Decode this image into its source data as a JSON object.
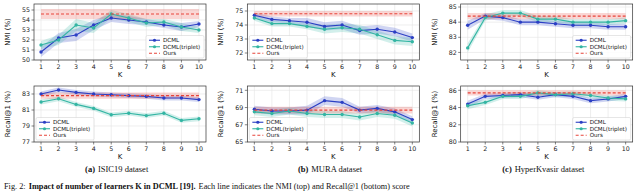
{
  "chart_data": [
    {
      "type": "line",
      "x_label": "K",
      "y_label": "NMI (%)",
      "x": [
        1,
        2,
        3,
        4,
        5,
        6,
        7,
        8,
        9,
        10
      ],
      "xlim": [
        0.6,
        10.4
      ],
      "xticks": [
        1,
        2,
        3,
        4,
        5,
        6,
        7,
        8,
        9,
        10
      ],
      "ylim": [
        50,
        55.6
      ],
      "yticks": [
        50,
        51,
        52,
        53,
        54,
        55
      ],
      "grid": true,
      "legend": "lower right",
      "series": [
        {
          "name": "DCML",
          "color": "#2b3fc4",
          "marker": "circle",
          "line_style": "solid",
          "values": [
            50.8,
            52.2,
            52.5,
            53.5,
            54.2,
            54.0,
            53.8,
            53.5,
            53.3,
            53.6
          ],
          "std": [
            0.5,
            0.5,
            0.6,
            0.5,
            0.4,
            0.4,
            0.3,
            0.3,
            0.4,
            0.3
          ]
        },
        {
          "name": "DCML(triplet)",
          "color": "#33b5a3",
          "marker": "circle",
          "line_style": "solid",
          "values": [
            51.5,
            52.0,
            53.5,
            53.2,
            54.6,
            54.2,
            53.7,
            53.8,
            53.3,
            53.0
          ],
          "std": [
            0.4,
            0.5,
            0.6,
            0.5,
            0.4,
            0.4,
            0.4,
            0.3,
            0.4,
            0.3
          ]
        },
        {
          "name": "Ours",
          "color": "#e8443a",
          "marker": "none",
          "line_style": "dashed",
          "values": [
            54.6,
            54.6,
            54.6,
            54.6,
            54.6,
            54.6,
            54.6,
            54.6,
            54.6,
            54.6
          ],
          "std": [
            0.5,
            0.5,
            0.5,
            0.5,
            0.5,
            0.5,
            0.5,
            0.5,
            0.5,
            0.5
          ]
        }
      ]
    },
    {
      "type": "line",
      "x_label": "K",
      "y_label": "Recall@1 (%)",
      "x": [
        1,
        2,
        3,
        4,
        5,
        6,
        7,
        8,
        9,
        10
      ],
      "xlim": [
        0.6,
        10.4
      ],
      "xticks": [
        1,
        2,
        3,
        4,
        5,
        6,
        7,
        8,
        9,
        10
      ],
      "ylim": [
        77,
        84
      ],
      "yticks": [
        77,
        79,
        81,
        83
      ],
      "grid": true,
      "legend": "lower left",
      "series": [
        {
          "name": "DCML",
          "color": "#2b3fc4",
          "marker": "circle",
          "line_style": "solid",
          "values": [
            83.0,
            83.5,
            83.2,
            83.0,
            82.9,
            82.8,
            82.7,
            82.5,
            82.5,
            82.3
          ],
          "std": [
            0.3,
            0.3,
            0.3,
            0.3,
            0.3,
            0.3,
            0.3,
            0.3,
            0.3,
            0.3
          ]
        },
        {
          "name": "DCML(triplet)",
          "color": "#33b5a3",
          "marker": "circle",
          "line_style": "solid",
          "values": [
            82.0,
            82.4,
            81.7,
            81.2,
            80.4,
            80.6,
            80.3,
            80.6,
            79.7,
            79.9
          ],
          "std": [
            0.3,
            0.3,
            0.3,
            0.3,
            0.3,
            0.3,
            0.3,
            0.3,
            0.3,
            0.3
          ]
        },
        {
          "name": "Ours",
          "color": "#e8443a",
          "marker": "none",
          "line_style": "dashed",
          "values": [
            82.8,
            82.8,
            82.8,
            82.8,
            82.8,
            82.8,
            82.8,
            82.8,
            82.8,
            82.8
          ],
          "std": [
            0.4,
            0.4,
            0.4,
            0.4,
            0.4,
            0.4,
            0.4,
            0.4,
            0.4,
            0.4
          ]
        }
      ]
    },
    {
      "type": "line",
      "x_label": "K",
      "y_label": "NMI (%)",
      "x": [
        1,
        2,
        3,
        4,
        5,
        6,
        7,
        8,
        9,
        10
      ],
      "xlim": [
        0.6,
        10.4
      ],
      "xticks": [
        1,
        2,
        3,
        4,
        5,
        6,
        7,
        8,
        9,
        10
      ],
      "ylim": [
        71.5,
        75.5
      ],
      "yticks": [
        72,
        73,
        74,
        75
      ],
      "grid": true,
      "legend": "lower left",
      "series": [
        {
          "name": "DCML",
          "color": "#2b3fc4",
          "marker": "circle",
          "line_style": "solid",
          "values": [
            74.7,
            74.4,
            74.3,
            74.2,
            73.9,
            74.0,
            73.6,
            73.7,
            73.5,
            73.1
          ],
          "std": [
            0.2,
            0.2,
            0.2,
            0.3,
            0.3,
            0.3,
            0.3,
            0.3,
            0.3,
            0.3
          ]
        },
        {
          "name": "DCML(triplet)",
          "color": "#33b5a3",
          "marker": "circle",
          "line_style": "solid",
          "values": [
            74.5,
            74.1,
            74.1,
            73.9,
            73.7,
            73.8,
            73.7,
            73.3,
            72.9,
            72.8
          ],
          "std": [
            0.2,
            0.2,
            0.2,
            0.2,
            0.3,
            0.3,
            0.3,
            0.3,
            0.3,
            0.3
          ]
        },
        {
          "name": "Ours",
          "color": "#e8443a",
          "marker": "none",
          "line_style": "dashed",
          "values": [
            74.8,
            74.8,
            74.8,
            74.8,
            74.8,
            74.8,
            74.8,
            74.8,
            74.8,
            74.8
          ],
          "std": [
            0.2,
            0.2,
            0.2,
            0.2,
            0.2,
            0.2,
            0.2,
            0.2,
            0.2,
            0.2
          ]
        }
      ]
    },
    {
      "type": "line",
      "x_label": "K",
      "y_label": "Recall@1 (%)",
      "x": [
        1,
        2,
        3,
        4,
        5,
        6,
        7,
        8,
        9,
        10
      ],
      "xlim": [
        0.6,
        10.4
      ],
      "xticks": [
        1,
        2,
        3,
        4,
        5,
        6,
        7,
        8,
        9,
        10
      ],
      "ylim": [
        65,
        71.5
      ],
      "yticks": [
        65,
        67,
        69,
        71
      ],
      "grid": true,
      "legend": "lower left",
      "series": [
        {
          "name": "DCML",
          "color": "#2b3fc4",
          "marker": "circle",
          "line_style": "solid",
          "values": [
            68.8,
            68.6,
            68.6,
            68.7,
            69.8,
            69.6,
            68.7,
            68.9,
            68.5,
            67.6
          ],
          "std": [
            0.4,
            0.4,
            0.4,
            0.5,
            0.5,
            0.5,
            0.4,
            0.4,
            0.4,
            0.4
          ]
        },
        {
          "name": "DCML(triplet)",
          "color": "#33b5a3",
          "marker": "circle",
          "line_style": "solid",
          "values": [
            68.5,
            68.3,
            68.6,
            68.3,
            68.2,
            68.2,
            67.9,
            68.3,
            68.1,
            67.2
          ],
          "std": [
            0.4,
            0.4,
            0.4,
            0.4,
            0.4,
            0.4,
            0.4,
            0.4,
            0.4,
            0.4
          ]
        },
        {
          "name": "Ours",
          "color": "#e8443a",
          "marker": "none",
          "line_style": "dashed",
          "values": [
            68.7,
            68.7,
            68.7,
            68.7,
            68.7,
            68.7,
            68.7,
            68.7,
            68.7,
            68.7
          ],
          "std": [
            0.4,
            0.4,
            0.4,
            0.4,
            0.4,
            0.4,
            0.4,
            0.4,
            0.4,
            0.4
          ]
        }
      ]
    },
    {
      "type": "line",
      "x_label": "K",
      "y_label": "NMI (%)",
      "x": [
        1,
        2,
        3,
        4,
        5,
        6,
        7,
        8,
        9,
        10
      ],
      "xlim": [
        0.6,
        10.4
      ],
      "xticks": [
        1,
        2,
        3,
        4,
        5,
        6,
        7,
        8,
        9,
        10
      ],
      "ylim": [
        81.5,
        85.2
      ],
      "yticks": [
        82,
        83,
        84,
        85
      ],
      "grid": true,
      "legend": "lower right",
      "series": [
        {
          "name": "DCML",
          "color": "#2b3fc4",
          "marker": "circle",
          "line_style": "solid",
          "values": [
            83.8,
            84.4,
            84.3,
            84.0,
            84.0,
            83.9,
            83.8,
            83.8,
            83.7,
            83.7
          ],
          "std": [
            0.3,
            0.2,
            0.2,
            0.2,
            0.2,
            0.2,
            0.2,
            0.2,
            0.2,
            0.2
          ]
        },
        {
          "name": "DCML(triplet)",
          "color": "#33b5a3",
          "marker": "circle",
          "line_style": "solid",
          "values": [
            82.3,
            84.3,
            84.6,
            84.6,
            84.2,
            84.2,
            84.0,
            84.0,
            84.0,
            84.1
          ],
          "std": [
            0.3,
            0.2,
            0.2,
            0.2,
            0.2,
            0.2,
            0.2,
            0.2,
            0.2,
            0.2
          ]
        },
        {
          "name": "Ours",
          "color": "#e8443a",
          "marker": "none",
          "line_style": "dashed",
          "values": [
            84.4,
            84.4,
            84.4,
            84.4,
            84.4,
            84.4,
            84.4,
            84.4,
            84.4,
            84.4
          ],
          "std": [
            0.2,
            0.2,
            0.2,
            0.2,
            0.2,
            0.2,
            0.2,
            0.2,
            0.2,
            0.2
          ]
        }
      ]
    },
    {
      "type": "line",
      "x_label": "K",
      "y_label": "Recall@1 (%)",
      "x": [
        1,
        2,
        3,
        4,
        5,
        6,
        7,
        8,
        9,
        10
      ],
      "xlim": [
        0.6,
        10.4
      ],
      "xticks": [
        1,
        2,
        3,
        4,
        5,
        6,
        7,
        8,
        9,
        10
      ],
      "ylim": [
        80,
        86.5
      ],
      "yticks": [
        80,
        82,
        84,
        86
      ],
      "grid": true,
      "legend": "lower right",
      "series": [
        {
          "name": "DCML",
          "color": "#2b3fc4",
          "marker": "circle",
          "line_style": "solid",
          "values": [
            84.4,
            85.3,
            85.4,
            85.5,
            85.2,
            85.5,
            85.3,
            84.8,
            85.0,
            85.3
          ],
          "std": [
            0.4,
            0.3,
            0.3,
            0.3,
            0.3,
            0.3,
            0.3,
            0.3,
            0.3,
            0.3
          ]
        },
        {
          "name": "DCML(triplet)",
          "color": "#33b5a3",
          "marker": "circle",
          "line_style": "solid",
          "values": [
            84.2,
            84.6,
            85.3,
            85.3,
            85.7,
            85.5,
            85.6,
            85.4,
            85.1,
            85.0
          ],
          "std": [
            0.4,
            0.3,
            0.3,
            0.3,
            0.3,
            0.3,
            0.3,
            0.3,
            0.3,
            0.3
          ]
        },
        {
          "name": "Ours",
          "color": "#e8443a",
          "marker": "none",
          "line_style": "dashed",
          "values": [
            85.7,
            85.7,
            85.7,
            85.7,
            85.7,
            85.7,
            85.7,
            85.7,
            85.7,
            85.7
          ],
          "std": [
            0.3,
            0.3,
            0.3,
            0.3,
            0.3,
            0.3,
            0.3,
            0.3,
            0.3,
            0.3
          ]
        }
      ]
    }
  ],
  "panel_labels": [
    {
      "tag": "(a)",
      "text": "ISIC19 dataset"
    },
    {
      "tag": "(b)",
      "text": "MURA dataset"
    },
    {
      "tag": "(c)",
      "text": "HyperKvasir dataset"
    }
  ],
  "caption": {
    "label": "Fig. 2:",
    "heading": "Impact of number of learners K in DCML [19].",
    "text": "Each line indicates the NMI (top) and Recall@1 (bottom) score"
  }
}
